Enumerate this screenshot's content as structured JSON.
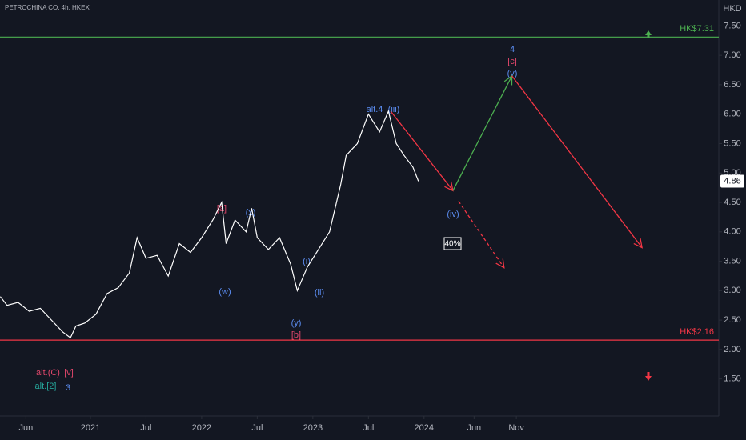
{
  "chart_data": {
    "type": "line",
    "title": "PETROCHINA CO, 4h, HKEX",
    "y_axis_unit": "HKD",
    "xlim": [
      2020.187,
      2026.65
    ],
    "ylim": [
      0.87,
      7.94
    ],
    "xticks": [
      {
        "value": 2020.42,
        "label": "Jun"
      },
      {
        "value": 2021.0,
        "label": "2021"
      },
      {
        "value": 2021.5,
        "label": "Jul"
      },
      {
        "value": 2022.0,
        "label": "2022"
      },
      {
        "value": 2022.5,
        "label": "Jul"
      },
      {
        "value": 2023.0,
        "label": "2023"
      },
      {
        "value": 2023.5,
        "label": "Jul"
      },
      {
        "value": 2024.0,
        "label": "2024"
      },
      {
        "value": 2024.45,
        "label": "Jun"
      },
      {
        "value": 2024.83,
        "label": "Nov"
      }
    ],
    "yticks": [
      {
        "value": 1.5,
        "label": "1.50"
      },
      {
        "value": 2.0,
        "label": "2.00"
      },
      {
        "value": 2.5,
        "label": "2.50"
      },
      {
        "value": 3.0,
        "label": "3.00"
      },
      {
        "value": 3.5,
        "label": "3.50"
      },
      {
        "value": 4.0,
        "label": "4.00"
      },
      {
        "value": 4.5,
        "label": "4.50"
      },
      {
        "value": 5.0,
        "label": "5.00"
      },
      {
        "value": 5.5,
        "label": "5.50"
      },
      {
        "value": 6.0,
        "label": "6.00"
      },
      {
        "value": 6.5,
        "label": "6.50"
      },
      {
        "value": 7.0,
        "label": "7.00"
      },
      {
        "value": 7.5,
        "label": "7.50"
      }
    ],
    "last_price": 4.86,
    "series": [
      {
        "color": "#ffffff",
        "x": [
          2020.19,
          2020.25,
          2020.35,
          2020.45,
          2020.55,
          2020.65,
          2020.75,
          2020.82,
          2020.87,
          2020.95,
          2021.05,
          2021.15,
          2021.25,
          2021.35,
          2021.42,
          2021.5,
          2021.6,
          2021.7,
          2021.8,
          2021.9,
          2022.0,
          2022.1,
          2022.18,
          2022.22,
          2022.3,
          2022.4,
          2022.45,
          2022.5,
          2022.6,
          2022.7,
          2022.8,
          2022.86,
          2022.95,
          2023.05,
          2023.15,
          2023.25,
          2023.3,
          2023.4,
          2023.5,
          2023.6,
          2023.68,
          2023.75,
          2023.82,
          2023.9,
          2023.95
        ],
        "values": [
          2.9,
          2.75,
          2.8,
          2.65,
          2.7,
          2.5,
          2.3,
          2.2,
          2.4,
          2.45,
          2.6,
          2.95,
          3.05,
          3.3,
          3.9,
          3.55,
          3.6,
          3.25,
          3.8,
          3.65,
          3.9,
          4.2,
          4.5,
          3.8,
          4.2,
          4.0,
          4.4,
          3.9,
          3.7,
          3.9,
          3.45,
          3.0,
          3.4,
          3.7,
          4.0,
          4.8,
          5.3,
          5.5,
          6.0,
          5.7,
          6.05,
          5.5,
          5.3,
          5.1,
          4.86
        ]
      }
    ],
    "levels": [
      {
        "value": 7.31,
        "label": "HK$7.31",
        "color": "#4caf50"
      },
      {
        "value": 2.16,
        "label": "HK$2.16",
        "color": "#f23645"
      }
    ],
    "projections": [
      {
        "color": "#f23645",
        "dashed": false,
        "x": [
          2023.7,
          2024.26
        ],
        "values": [
          6.05,
          4.7
        ]
      },
      {
        "color": "#4caf50",
        "dashed": false,
        "x": [
          2024.26,
          2024.79
        ],
        "values": [
          4.7,
          6.65
        ]
      },
      {
        "color": "#f23645",
        "dashed": false,
        "x": [
          2024.79,
          2025.96
        ],
        "values": [
          6.65,
          3.73
        ]
      },
      {
        "color": "#f23645",
        "dashed": true,
        "x": [
          2024.31,
          2024.72
        ],
        "values": [
          4.52,
          3.39
        ]
      }
    ],
    "annotations": [
      "4",
      "[c]",
      "(v)",
      "alt.4",
      "(iii)",
      "(iv)",
      "40%",
      "[a]",
      "(x)",
      "(w)",
      "(i)",
      "(ii)",
      "(y)",
      "[b]",
      "alt.(C)",
      "[v]",
      "alt.[2]",
      "3"
    ]
  }
}
